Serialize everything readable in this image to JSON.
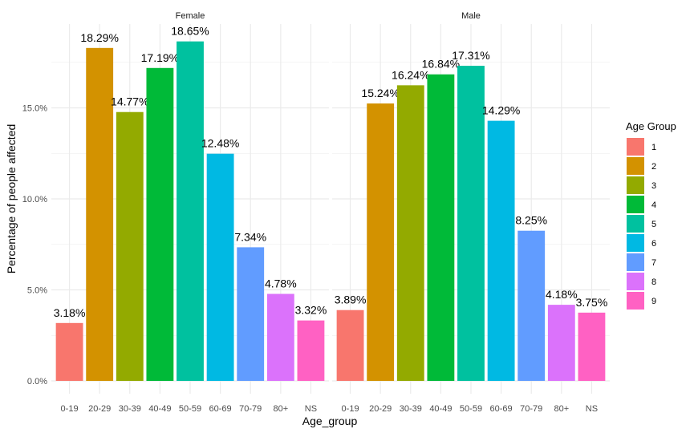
{
  "chart_data": {
    "type": "bar",
    "ylabel": "Percentage of people affected",
    "xlabel": "Age_group",
    "ylim": [
      0,
      19.5
    ],
    "y_ticks": [
      {
        "value": 0,
        "label": "0.0%"
      },
      {
        "value": 5,
        "label": "5.0%"
      },
      {
        "value": 10,
        "label": "10.0%"
      },
      {
        "value": 15,
        "label": "15.0%"
      }
    ],
    "categories": [
      "0-19",
      "20-29",
      "30-39",
      "40-49",
      "50-59",
      "60-69",
      "70-79",
      "80+",
      "NS"
    ],
    "grid": true,
    "legend": {
      "title": "Age Group",
      "position": "right",
      "entries": [
        "1",
        "2",
        "3",
        "4",
        "5",
        "6",
        "7",
        "8",
        "9"
      ]
    },
    "colors": [
      "#F8766D",
      "#D39200",
      "#93AA00",
      "#00BA38",
      "#00C19F",
      "#00B9E3",
      "#619CFF",
      "#DB72FB",
      "#FF61C3"
    ],
    "facets": [
      {
        "name": "Female",
        "values": [
          3.18,
          18.29,
          14.77,
          17.19,
          18.65,
          12.48,
          7.34,
          4.78,
          3.32
        ],
        "labels": [
          "3.18%",
          "18.29%",
          "14.77%",
          "17.19%",
          "18.65%",
          "12.48%",
          "7.34%",
          "4.78%",
          "3.32%"
        ]
      },
      {
        "name": "Male",
        "values": [
          3.89,
          15.24,
          16.24,
          16.84,
          17.31,
          14.29,
          8.25,
          4.18,
          3.75
        ],
        "labels": [
          "3.89%",
          "15.24%",
          "16.24%",
          "16.84%",
          "17.31%",
          "14.29%",
          "8.25%",
          "4.18%",
          "3.75%"
        ]
      }
    ]
  }
}
